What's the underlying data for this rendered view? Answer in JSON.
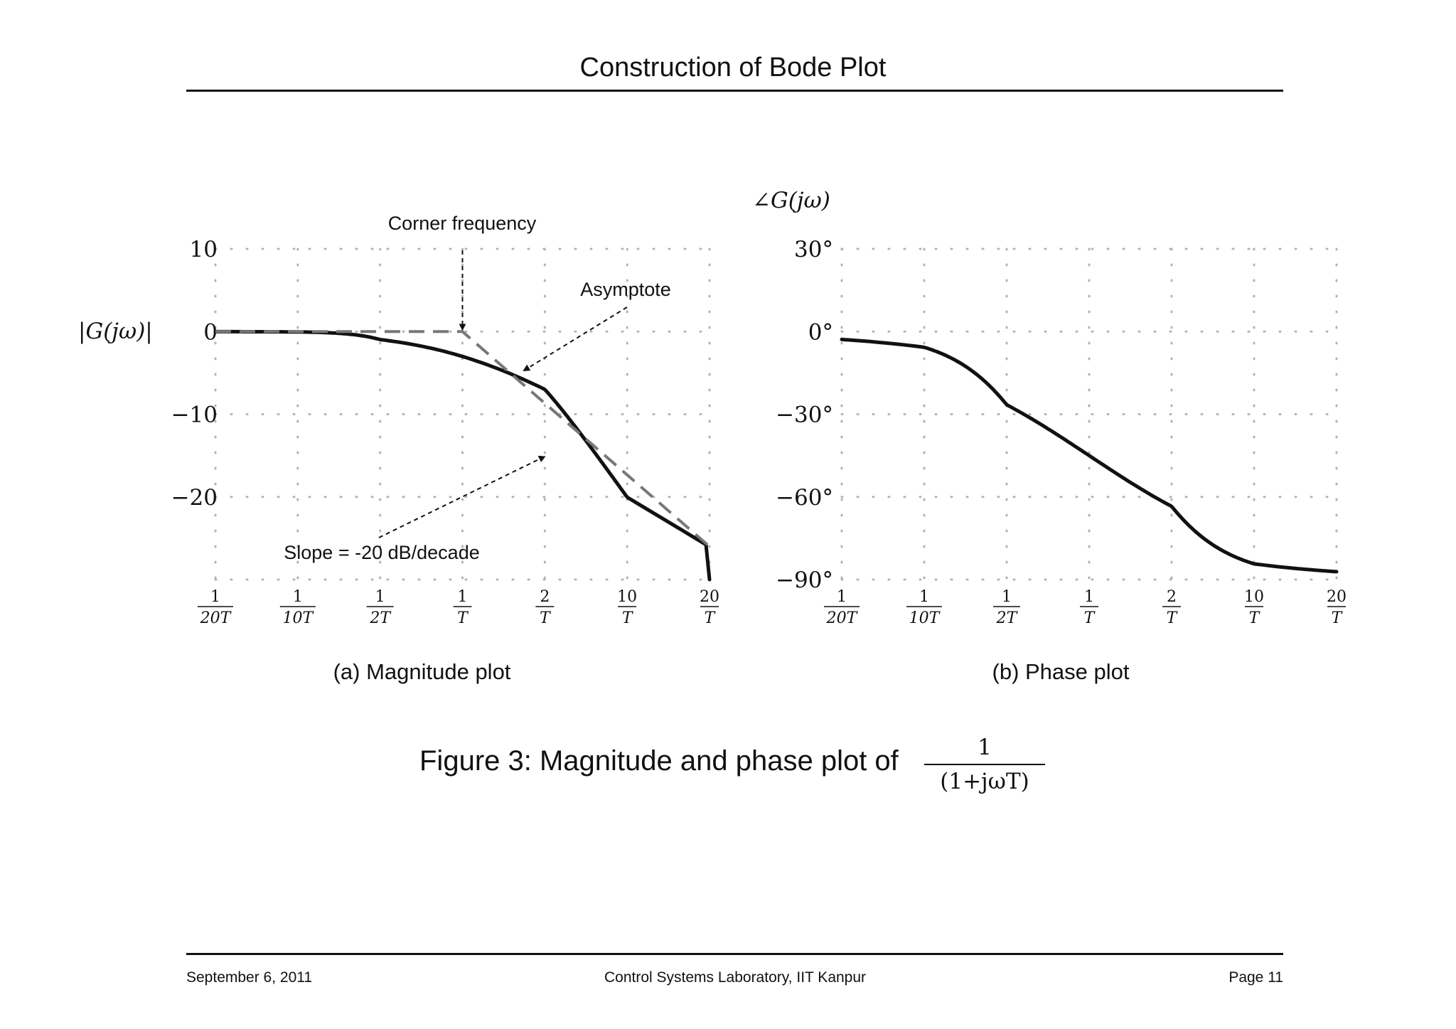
{
  "header": {
    "title": "Construction of Bode Plot"
  },
  "footer": {
    "date": "September 6, 2011",
    "center": "Control Systems Laboratory, IIT Kanpur",
    "page": "Page 11"
  },
  "figure_caption": {
    "text": "Figure 3: Magnitude and phase plot of",
    "fraction_numerator": "1",
    "fraction_denominator": "(1+jωT)"
  },
  "chart_data": [
    {
      "type": "line",
      "subcaption": "(a) Magnitude plot",
      "ylabel": "|G(jω)|",
      "x_ticks": [
        {
          "num": "1",
          "den": "20T",
          "omegaT": 0.05
        },
        {
          "num": "1",
          "den": "10T",
          "omegaT": 0.1
        },
        {
          "num": "1",
          "den": "2T",
          "omegaT": 0.5
        },
        {
          "num": "1",
          "den": "T",
          "omegaT": 1
        },
        {
          "num": "2",
          "den": "T",
          "omegaT": 2
        },
        {
          "num": "10",
          "den": "T",
          "omegaT": 10
        },
        {
          "num": "20",
          "den": "T",
          "omegaT": 20
        }
      ],
      "y_ticks": [
        "10",
        "0",
        "−10",
        "−20"
      ],
      "y_tick_values": [
        10,
        0,
        -10,
        -20
      ],
      "ylim": [
        -30,
        10
      ],
      "grid": true,
      "series": [
        {
          "style": "solid",
          "function": "-10*log10(1+(omegaT)^2)"
        },
        {
          "style": "dashed",
          "points": [
            [
              0.05,
              0
            ],
            [
              1,
              0
            ],
            [
              20,
              -26.0
            ]
          ]
        }
      ],
      "annotations": [
        {
          "text": "Corner frequency",
          "x": 1,
          "y": 0
        },
        {
          "text": "Asymptote",
          "x": 1.9,
          "y": -5
        },
        {
          "text": "Slope = -20 dB/decade",
          "x": 2,
          "y": -15
        }
      ]
    },
    {
      "type": "line",
      "subcaption": "(b) Phase plot",
      "ylabel": "∠G(jω)",
      "x_ticks": [
        {
          "num": "1",
          "den": "20T",
          "omegaT": 0.05
        },
        {
          "num": "1",
          "den": "10T",
          "omegaT": 0.1
        },
        {
          "num": "1",
          "den": "2T",
          "omegaT": 0.5
        },
        {
          "num": "1",
          "den": "T",
          "omegaT": 1
        },
        {
          "num": "2",
          "den": "T",
          "omegaT": 2
        },
        {
          "num": "10",
          "den": "T",
          "omegaT": 10
        },
        {
          "num": "20",
          "den": "T",
          "omegaT": 20
        }
      ],
      "y_ticks": [
        "30°",
        "0°",
        "−30°",
        "−60°",
        "−90°"
      ],
      "y_tick_values": [
        30,
        0,
        -30,
        -60,
        -90
      ],
      "ylim": [
        -90,
        30
      ],
      "grid": true,
      "series": [
        {
          "style": "solid",
          "function": "-atan(omegaT) in degrees"
        }
      ]
    }
  ],
  "colors": {
    "curve": "#111111",
    "asymptote": "#777777",
    "grid": "#b3b3b3"
  }
}
